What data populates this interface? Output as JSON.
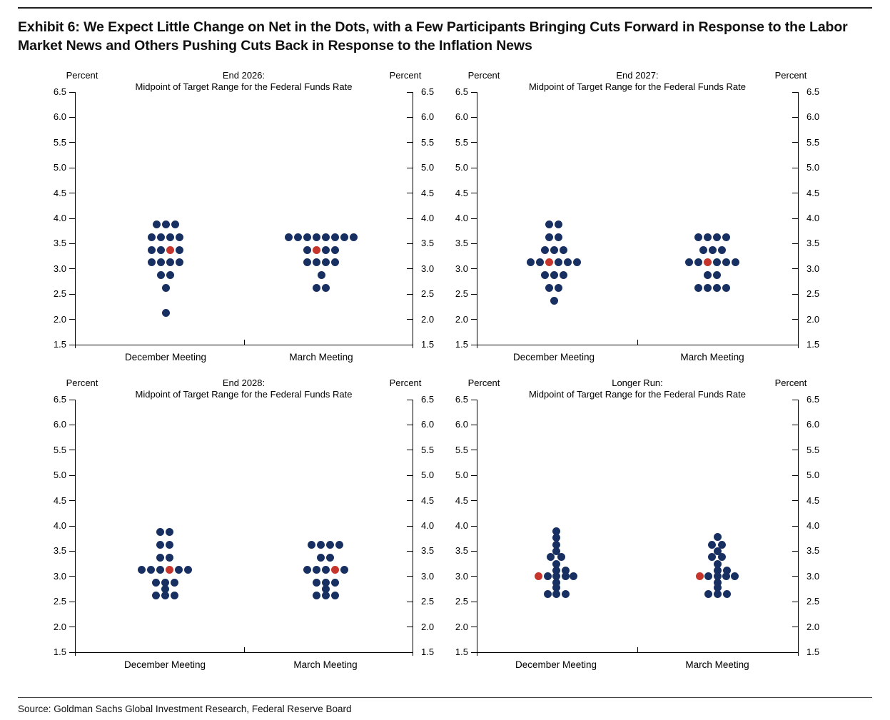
{
  "header": {
    "title": "Exhibit 6: We Expect Little Change on Net in the Dots, with a Few Participants Bringing Cuts Forward in Response to the Labor Market News and Others Pushing Cuts Back in Response to the Inflation News"
  },
  "source": {
    "text": "Source: Goldman Sachs Global Investment Research, Federal Reserve Board"
  },
  "colors": {
    "dot_navy": "#183061",
    "dot_median_red": "#c5352b",
    "axis": "#000000",
    "text": "#111111"
  },
  "axis": {
    "unit_label": "Percent",
    "ymin": 1.5,
    "ymax": 6.5,
    "ytick_labels": [
      "6.5",
      "6.0",
      "5.5",
      "5.0",
      "4.5",
      "4.0",
      "3.5",
      "3.0",
      "2.5",
      "2.0",
      "1.5"
    ]
  },
  "categories": [
    "December Meeting",
    "March Meeting"
  ],
  "chart_data": [
    {
      "type": "scatter",
      "title": "End 2026:",
      "subtitle": "Midpoint of Target Range for the Federal Funds Rate",
      "ylabel": "Percent",
      "ylim": [
        1.5,
        6.5
      ],
      "categories": [
        "December Meeting",
        "March Meeting"
      ],
      "groups": [
        {
          "category": "December Meeting",
          "rows": [
            {
              "value": 3.875,
              "count": 3
            },
            {
              "value": 3.625,
              "count": 4
            },
            {
              "value": 3.375,
              "count": 4,
              "median_index": 2
            },
            {
              "value": 3.125,
              "count": 4
            },
            {
              "value": 2.875,
              "count": 2
            },
            {
              "value": 2.625,
              "count": 1
            },
            {
              "value": 2.125,
              "count": 1
            }
          ]
        },
        {
          "category": "March Meeting",
          "rows": [
            {
              "value": 3.625,
              "count": 8
            },
            {
              "value": 3.375,
              "count": 4,
              "median_index": 1
            },
            {
              "value": 3.125,
              "count": 4
            },
            {
              "value": 2.875,
              "count": 1
            },
            {
              "value": 2.625,
              "count": 2
            }
          ]
        }
      ]
    },
    {
      "type": "scatter",
      "title": "End 2027:",
      "subtitle": "Midpoint of Target Range for the Federal Funds Rate",
      "ylabel": "Percent",
      "ylim": [
        1.5,
        6.5
      ],
      "categories": [
        "December Meeting",
        "March Meeting"
      ],
      "groups": [
        {
          "category": "December Meeting",
          "rows": [
            {
              "value": 3.875,
              "count": 2
            },
            {
              "value": 3.625,
              "count": 2
            },
            {
              "value": 3.375,
              "count": 3
            },
            {
              "value": 3.125,
              "count": 6,
              "median_index": 2
            },
            {
              "value": 2.875,
              "count": 3
            },
            {
              "value": 2.625,
              "count": 2
            },
            {
              "value": 2.375,
              "count": 1
            }
          ]
        },
        {
          "category": "March Meeting",
          "rows": [
            {
              "value": 3.625,
              "count": 4
            },
            {
              "value": 3.375,
              "count": 3
            },
            {
              "value": 3.125,
              "count": 6,
              "median_index": 2
            },
            {
              "value": 2.875,
              "count": 2
            },
            {
              "value": 2.625,
              "count": 4
            }
          ]
        }
      ]
    },
    {
      "type": "scatter",
      "title": "End 2028:",
      "subtitle": "Midpoint of Target Range for the Federal Funds Rate",
      "ylabel": "Percent",
      "ylim": [
        1.5,
        6.5
      ],
      "categories": [
        "December Meeting",
        "March Meeting"
      ],
      "groups": [
        {
          "category": "December Meeting",
          "rows": [
            {
              "value": 3.875,
              "count": 2
            },
            {
              "value": 3.625,
              "count": 2
            },
            {
              "value": 3.375,
              "count": 2
            },
            {
              "value": 3.125,
              "count": 6,
              "median_index": 3
            },
            {
              "value": 2.875,
              "count": 3
            },
            {
              "value": 2.75,
              "count": 1
            },
            {
              "value": 2.625,
              "count": 3
            }
          ]
        },
        {
          "category": "March Meeting",
          "rows": [
            {
              "value": 3.625,
              "count": 4
            },
            {
              "value": 3.375,
              "count": 2
            },
            {
              "value": 3.125,
              "count": 5,
              "median_index": 3
            },
            {
              "value": 2.875,
              "count": 3
            },
            {
              "value": 2.75,
              "count": 1
            },
            {
              "value": 2.625,
              "count": 3
            }
          ]
        }
      ]
    },
    {
      "type": "scatter",
      "title": "Longer Run:",
      "subtitle": "Midpoint of Target Range for the Federal Funds Rate",
      "ylabel": "Percent",
      "ylim": [
        1.5,
        6.5
      ],
      "categories": [
        "December Meeting",
        "March Meeting"
      ],
      "groups": [
        {
          "category": "December Meeting",
          "rows": [
            {
              "value": 3.9,
              "count": 1,
              "offsets": [
                0
              ]
            },
            {
              "value": 3.76,
              "count": 1,
              "offsets": [
                0
              ]
            },
            {
              "value": 3.63,
              "count": 1,
              "offsets": [
                0
              ]
            },
            {
              "value": 3.5,
              "count": 1,
              "offsets": [
                0
              ]
            },
            {
              "value": 3.38,
              "count": 2,
              "offsets": [
                -0.55,
                0.55
              ]
            },
            {
              "value": 3.25,
              "count": 1,
              "offsets": [
                0
              ]
            },
            {
              "value": 3.12,
              "count": 2,
              "offsets": [
                0,
                1
              ]
            },
            {
              "value": 3.0,
              "count": 5,
              "offsets": [
                -1.9,
                -0.9,
                0,
                1,
                1.9
              ],
              "median_index": 0
            },
            {
              "value": 2.88,
              "count": 1,
              "offsets": [
                0
              ]
            },
            {
              "value": 2.78,
              "count": 1,
              "offsets": [
                0
              ]
            },
            {
              "value": 2.65,
              "count": 3,
              "offsets": [
                -0.9,
                0,
                1
              ]
            }
          ]
        },
        {
          "category": "March Meeting",
          "rows": [
            {
              "value": 3.78,
              "count": 1,
              "offsets": [
                0
              ]
            },
            {
              "value": 3.63,
              "count": 2,
              "offsets": [
                -0.6,
                0.5
              ]
            },
            {
              "value": 3.5,
              "count": 1,
              "offsets": [
                0
              ]
            },
            {
              "value": 3.38,
              "count": 2,
              "offsets": [
                -0.6,
                0.5
              ]
            },
            {
              "value": 3.25,
              "count": 1,
              "offsets": [
                0
              ]
            },
            {
              "value": 3.12,
              "count": 2,
              "offsets": [
                0,
                1
              ]
            },
            {
              "value": 3.0,
              "count": 5,
              "offsets": [
                -1.9,
                -0.95,
                0,
                0.95,
                1.9
              ],
              "median_index": 0
            },
            {
              "value": 2.88,
              "count": 1,
              "offsets": [
                0
              ]
            },
            {
              "value": 2.78,
              "count": 1,
              "offsets": [
                0
              ]
            },
            {
              "value": 2.65,
              "count": 3,
              "offsets": [
                -0.95,
                0,
                1
              ]
            }
          ]
        }
      ]
    }
  ]
}
